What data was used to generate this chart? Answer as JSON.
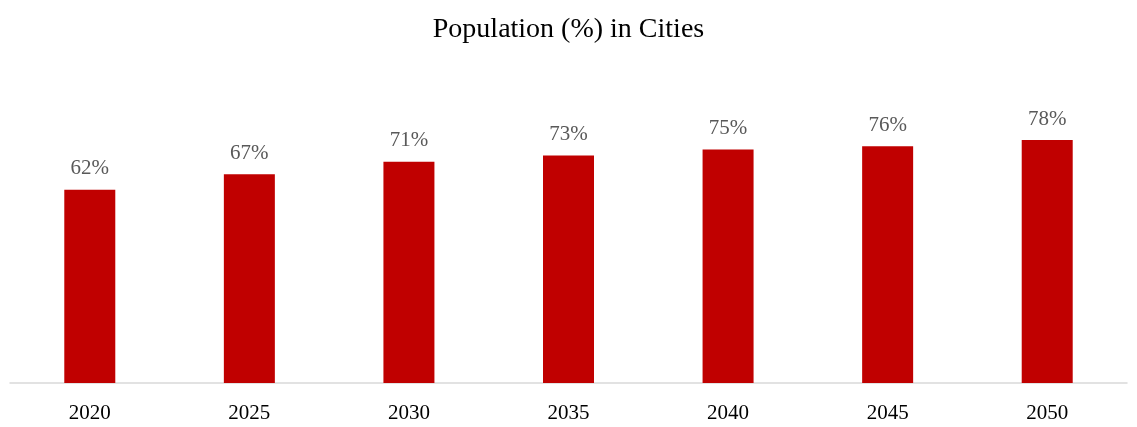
{
  "chart_data": {
    "type": "bar",
    "title": "Population (%) in Cities",
    "categories": [
      "2020",
      "2025",
      "2030",
      "2035",
      "2040",
      "2045",
      "2050"
    ],
    "values": [
      62,
      67,
      71,
      73,
      75,
      76,
      78
    ],
    "value_labels": [
      "62%",
      "67%",
      "71%",
      "73%",
      "75%",
      "76%",
      "78%"
    ],
    "color": "#c00000"
  }
}
